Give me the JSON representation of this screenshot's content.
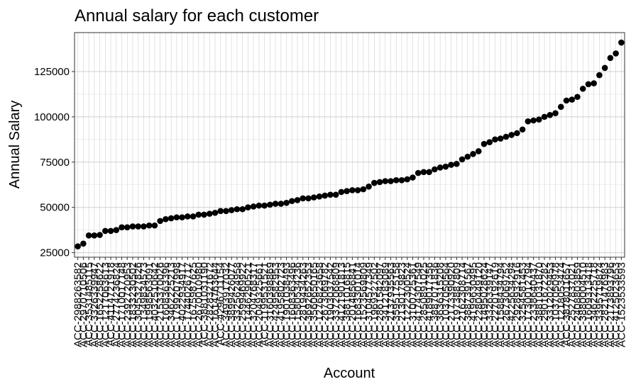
{
  "chart_data": {
    "type": "scatter",
    "title": "Annual salary for each customer",
    "x_label": "Account",
    "y_label": "Annual Salary",
    "categories": [
      "ACC-2988263582",
      "ACC-2970710506",
      "ACC-3531485115",
      "ACC-3326339947",
      "ACC-1652258622",
      "ACC-1217063613",
      "ACC-4114721918",
      "ACC-2774236824",
      "ACC-1710017148",
      "ACC-2392720953",
      "ACC-1833230502",
      "ACC-3045327826",
      "ACC-1349834573",
      "ACC-1998563091",
      "ACC-4032510642",
      "ACC-2153370026",
      "ACC-1608363396",
      "ACC-3462225213",
      "ACC-1799207998",
      "ACC-4022934917",
      "ACC-1744026717",
      "ACC-1675987625",
      "ACC-2670010980",
      "ACC-3881031190",
      "ACC-2828321672",
      "ACC-1614763644",
      "ACC-4296711154",
      "ACC-3493917032",
      "ACC-3899426077",
      "ACC-3325624958",
      "ACC-2599469922",
      "ACC-1446290521",
      "ACC-3204768317",
      "ACC-2049325661",
      "ACC-1199531521",
      "ACC-3160398869",
      "ACC-4249582953",
      "ACC-4195802723",
      "ACC-1901038493",
      "ACC-1608363496",
      "ACC-1580534236",
      "ACC-2819434263",
      "ACC-3692652353",
      "ACC-3560650165",
      "ACC-1276823658",
      "ACC-2673069782",
      "ACC-1903037542",
      "ACC-3372068809",
      "ACC-4121901813",
      "ACC-3881016815",
      "ACC-2014856841",
      "ACC-1683301014",
      "ACC-1523569809",
      "ACC-3104577349",
      "ACC-1969327502",
      "ACC-2861542097",
      "ACC-3412183089",
      "ACC-2137935563",
      "ACC-3595175158",
      "ACC-2130179823",
      "ACC-1222300524",
      "ACC-3100725361",
      "ACC-4174307549",
      "ACC-2850891025",
      "ACC-4189017356",
      "ACC-3887071836",
      "ACC-3636315208",
      "ACC-1037050564",
      "ACC-2173390920",
      "ACC-1973887809",
      "ACC-2162308714",
      "ACC-3887391567",
      "ACC-4199630495",
      "ACC-2280449120",
      "ACC-1495028624",
      "ACC-3326339147",
      "ACC-2270192619",
      "ACC-1588434794",
      "ACC-2673069752",
      "ACC-4225634294",
      "ACC-2928932916",
      "ACC-3254581453",
      "ACC-1730012794",
      "ACC-2338640437",
      "ACC-3881031870",
      "ACC-2901672282",
      "ACC-3312029453",
      "ACC-1037050978",
      "ACC-1218053474",
      "ACC-3878011657",
      "ACC-2527837021",
      "ACC-2408803859",
      "ACC-3880004510",
      "ACC-1609313418",
      "ACC-3462225718",
      "ACC-3395719874",
      "ACC-2821476983",
      "ACC-2173893796",
      "ACC-4125023653",
      "ACC-1523533593"
    ],
    "values": [
      28500,
      30000,
      34500,
      34500,
      34800,
      37000,
      37000,
      37500,
      39000,
      39000,
      39500,
      39500,
      39500,
      40000,
      40000,
      42500,
      43500,
      44000,
      44500,
      44500,
      45000,
      45000,
      46000,
      46000,
      46500,
      47000,
      48000,
      48000,
      48500,
      49000,
      49000,
      50000,
      50500,
      51000,
      51000,
      51500,
      52000,
      52000,
      52500,
      53500,
      54000,
      55000,
      55000,
      55500,
      56000,
      56500,
      57000,
      57000,
      58500,
      59000,
      59500,
      59500,
      60000,
      61500,
      63500,
      64000,
      64500,
      64500,
      65000,
      65000,
      65500,
      66500,
      69000,
      69500,
      69500,
      71000,
      72000,
      72500,
      73500,
      74000,
      76500,
      78000,
      79500,
      81000,
      85000,
      86000,
      87500,
      88000,
      89000,
      90000,
      91000,
      93000,
      97500,
      98000,
      98500,
      100000,
      101000,
      102000,
      105500,
      109000,
      109500,
      111000,
      115500,
      118000,
      118500,
      123000,
      127000,
      132500,
      135000,
      141000
    ],
    "color": "#000000",
    "ylim": [
      22500,
      146500
    ],
    "yticks": [
      25000,
      50000,
      75000,
      100000,
      125000
    ],
    "grid": true
  }
}
